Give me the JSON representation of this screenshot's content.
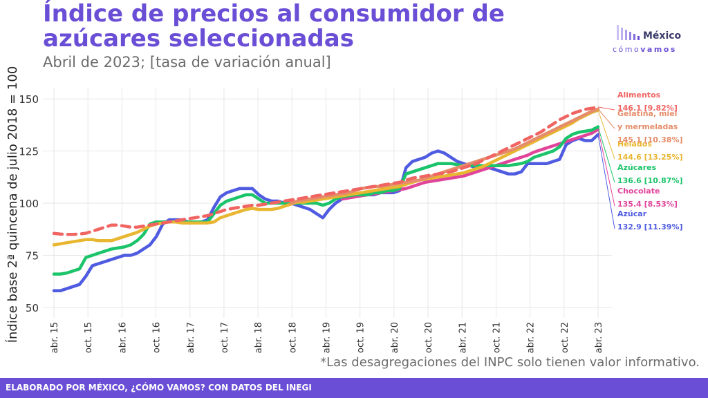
{
  "title": "Índice de precios al consumidor de azúcares seleccionadas",
  "subtitle": "Abril de 2023; [tasa de variación anual]",
  "logo": {
    "name": "México",
    "sub_pre": "cómo",
    "sub_post": "vamos"
  },
  "note": "*Las desagregaciones del INPC solo tienen valor informativo.",
  "footer": "ELABORADO POR MÉXICO, ¿CÓMO VAMOS? CON DATOS DEL INEGI",
  "chart_data": {
    "type": "line",
    "ylabel": "Índice base 2ª quincena de julio 2018 = 100",
    "xlabel": "",
    "ylim": [
      45,
      155
    ],
    "yticks": [
      50,
      75,
      100,
      125,
      150
    ],
    "grid": true,
    "legend": "direct labels at right",
    "x_tick_labels": [
      "abr. 15",
      "oct. 15",
      "abr. 16",
      "oct. 16",
      "abr. 17",
      "oct. 17",
      "abr. 18",
      "oct. 18",
      "abr. 19",
      "oct. 19",
      "abr. 20",
      "oct. 20",
      "abr. 21",
      "oct. 21",
      "abr. 22",
      "oct. 22",
      "abr. 23"
    ],
    "series": [
      {
        "name": "Azúcar",
        "label_value": "132.9 [11.39%]",
        "color": "#4f5be0",
        "dashed": false,
        "values": [
          58,
          58,
          59,
          60,
          61,
          65,
          70,
          71,
          72,
          73,
          74,
          75,
          75,
          76,
          78,
          80,
          84,
          90,
          92,
          92,
          92,
          91,
          91,
          91,
          92,
          98,
          103,
          105,
          106,
          107,
          107,
          107,
          104,
          102,
          101,
          101,
          100,
          100,
          99,
          98,
          97,
          95,
          93,
          97,
          100,
          102,
          103,
          104,
          104,
          104,
          104,
          105,
          105,
          105,
          106,
          117,
          120,
          121,
          122,
          124,
          125,
          124,
          122,
          120,
          119,
          118,
          117,
          117,
          117,
          116,
          115,
          114,
          114,
          115,
          119,
          119,
          119,
          119,
          120,
          121,
          128,
          130,
          131,
          130,
          130,
          132.9
        ]
      },
      {
        "name": "Chocolate",
        "label_value": "135.4 [8.53%]",
        "color": "#e0459a",
        "dashed": false,
        "values": [
          null,
          null,
          null,
          null,
          null,
          null,
          null,
          null,
          null,
          null,
          null,
          null,
          null,
          null,
          null,
          null,
          null,
          null,
          null,
          null,
          null,
          null,
          null,
          null,
          null,
          null,
          null,
          null,
          null,
          null,
          null,
          null,
          null,
          null,
          null,
          null,
          null,
          null,
          null,
          null,
          null,
          null,
          null,
          null,
          null,
          102,
          102.5,
          103,
          103.5,
          104,
          104.5,
          105,
          105.5,
          106,
          106.5,
          107,
          108,
          109,
          110,
          110.5,
          111,
          111.5,
          112,
          112.5,
          113,
          114,
          115,
          116,
          117,
          118,
          119,
          120,
          121,
          122,
          123,
          124.5,
          125.5,
          126.5,
          127.5,
          128.5,
          129.5,
          130.5,
          131.5,
          132.5,
          133.5,
          135.4
        ]
      },
      {
        "name": "Azúcares",
        "label_value": "136.6 [10.87%]",
        "color": "#1bc46a",
        "dashed": false,
        "values": [
          66,
          66,
          66.5,
          67.5,
          68.5,
          74,
          75,
          76,
          77,
          78,
          78.5,
          79,
          80,
          82,
          85,
          90,
          91,
          91,
          91,
          91,
          91,
          91,
          91,
          91,
          91,
          95,
          99,
          101,
          102,
          103,
          104,
          104,
          102,
          100,
          100,
          100,
          100,
          100,
          100,
          100,
          100,
          100,
          99,
          100,
          102,
          103,
          103.5,
          104,
          104,
          104,
          105,
          105,
          106,
          106,
          107,
          114,
          115,
          116,
          117,
          118,
          119,
          119,
          119,
          118.5,
          118,
          118,
          118,
          118,
          118,
          118,
          118,
          118,
          118.5,
          119,
          120,
          122,
          123,
          124,
          125,
          127,
          131,
          133,
          134,
          134.5,
          135,
          136.6
        ]
      },
      {
        "name": "Helados",
        "label_value": "144.6 [13.25%]",
        "color": "#e8b630",
        "dashed": false,
        "values": [
          80,
          80.5,
          81,
          81.5,
          82,
          82.5,
          82.5,
          82,
          82,
          82,
          83,
          84,
          85,
          86,
          87.5,
          89,
          90,
          90.5,
          91,
          91,
          90.5,
          90.5,
          90.5,
          90.5,
          90.5,
          91,
          93,
          94,
          95,
          96,
          97,
          97.5,
          97,
          97,
          97,
          97.5,
          98.5,
          99.5,
          100.5,
          100.5,
          101,
          101.5,
          102,
          102.5,
          103,
          103.5,
          104,
          104.5,
          105,
          105.5,
          106,
          106.5,
          107,
          107.5,
          108,
          109,
          110,
          111,
          111.5,
          112,
          112.5,
          113,
          113.5,
          114,
          114.5,
          115.5,
          116.5,
          117.5,
          119,
          120.5,
          122,
          123.5,
          125,
          126.5,
          128,
          129.5,
          131,
          132.5,
          134,
          135.5,
          137,
          138.5,
          140.5,
          142,
          143.5,
          144.6
        ]
      },
      {
        "name": "Gelatina, miel y mermeladas",
        "label_value": "145.1 [10.38%]",
        "color": "#e58d6a",
        "dashed": false,
        "values": [
          null,
          null,
          null,
          null,
          null,
          null,
          null,
          null,
          null,
          null,
          null,
          null,
          null,
          null,
          null,
          null,
          null,
          null,
          null,
          null,
          null,
          null,
          null,
          null,
          null,
          null,
          null,
          null,
          null,
          null,
          null,
          null,
          null,
          null,
          null,
          null,
          null,
          100,
          101,
          101.5,
          102,
          102.5,
          103,
          103.5,
          104,
          104.5,
          105,
          106,
          107,
          107.5,
          108,
          108,
          108.5,
          109,
          109.5,
          110,
          110.5,
          111,
          112,
          113,
          114,
          115,
          116,
          117,
          118,
          119,
          120,
          121,
          122,
          123,
          124,
          125,
          126,
          127.5,
          129,
          130.5,
          132,
          133.5,
          135,
          136.5,
          138,
          139.5,
          141,
          142.5,
          144,
          145.1
        ]
      },
      {
        "name": "Alimentos",
        "label_value": "146.1 [9.82%]",
        "color": "#f06462",
        "dashed": true,
        "values": [
          85.5,
          85.2,
          85,
          85,
          85.2,
          85.6,
          86.5,
          87.5,
          88.5,
          89.5,
          89.5,
          89,
          88.5,
          88.5,
          89,
          89.5,
          90,
          90.5,
          91,
          91.5,
          92,
          92.5,
          93,
          93.5,
          94,
          95,
          96,
          97,
          97.5,
          98,
          98.5,
          99,
          99,
          99.5,
          100,
          100.5,
          101,
          101.5,
          102,
          102.5,
          103,
          103.5,
          104,
          104.5,
          105,
          105.5,
          106,
          106.5,
          107,
          107.5,
          108,
          108.5,
          109,
          109.5,
          110,
          111,
          112,
          112.5,
          113,
          113.5,
          114,
          114.5,
          115,
          116,
          117,
          118,
          119,
          120.5,
          122,
          123.5,
          125,
          126.5,
          128,
          129.5,
          131,
          132.5,
          134,
          136,
          138,
          140,
          141.5,
          143,
          144,
          145,
          145.5,
          146.1
        ]
      }
    ]
  }
}
